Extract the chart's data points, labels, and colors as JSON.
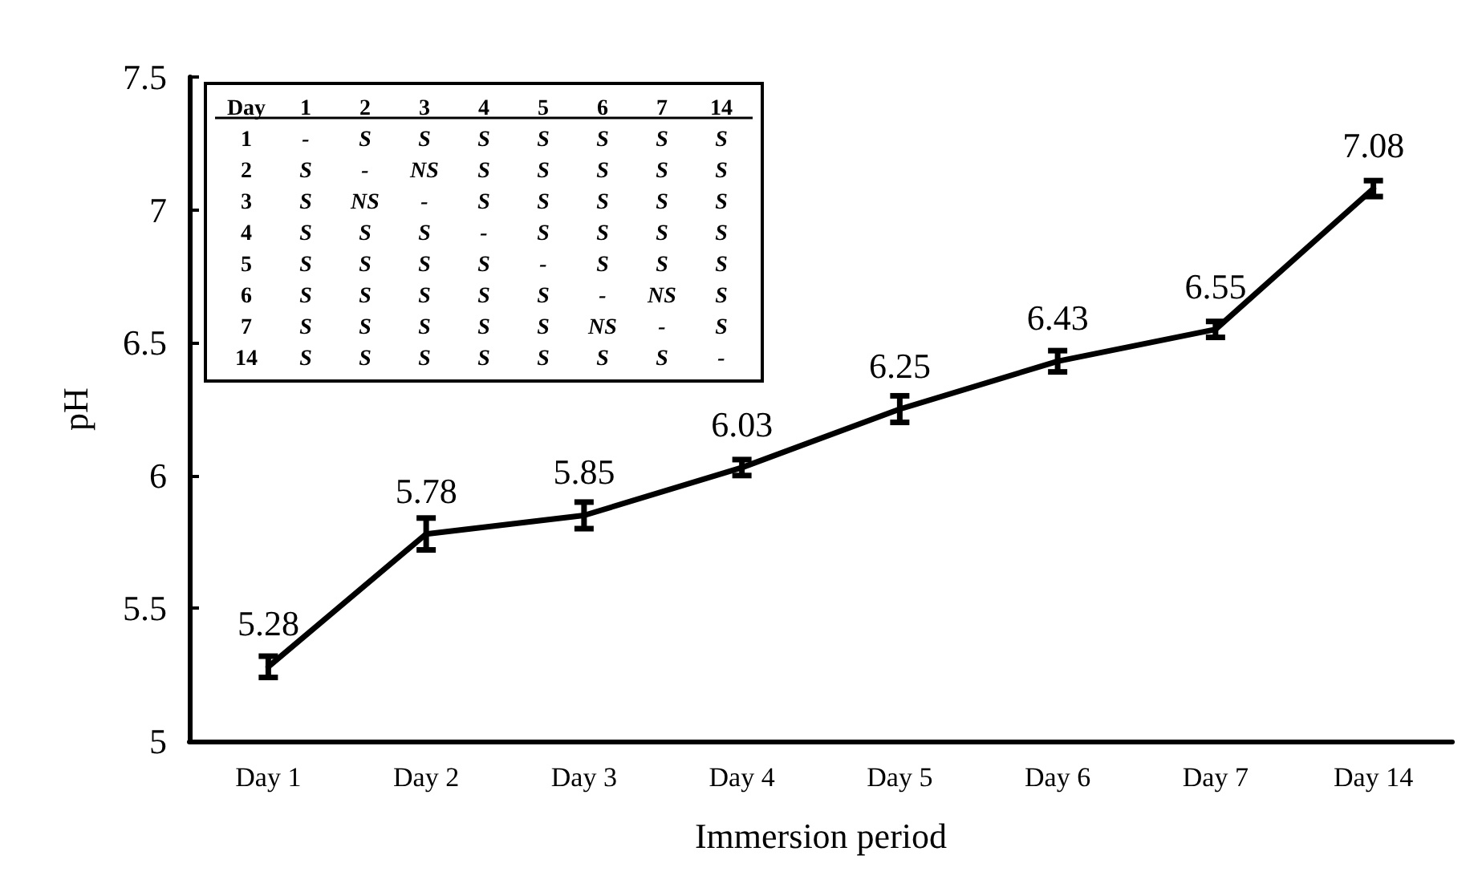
{
  "chart_data": {
    "type": "line",
    "xlabel": "Immersion period",
    "ylabel": "pH",
    "categories": [
      "Day 1",
      "Day 2",
      "Day 3",
      "Day 4",
      "Day 5",
      "Day 6",
      "Day 7",
      "Day 14"
    ],
    "series": [
      {
        "color": "#000000",
        "values": [
          5.28,
          5.78,
          5.85,
          6.03,
          6.25,
          6.43,
          6.55,
          7.08
        ],
        "errors": [
          0.04,
          0.06,
          0.05,
          0.03,
          0.05,
          0.04,
          0.03,
          0.03
        ]
      }
    ],
    "ylim": [
      5,
      7.5
    ],
    "yticks": [
      5,
      5.5,
      6,
      6.5,
      7,
      7.5
    ],
    "data_labels": true,
    "marker": "none",
    "line_style": "solid",
    "annotations": [
      "Day 1 2 3 4 5 6 7 14",
      "1 - S S S S S S S",
      "2 S - NS S S S S S",
      "3 S NS - S S S S S",
      "4 S S S - S S S S",
      "5 S S S S - S S S",
      "6 S S S S S - NS S",
      "7 S S S S S NS - S",
      "14 S S S S S S S -"
    ]
  }
}
